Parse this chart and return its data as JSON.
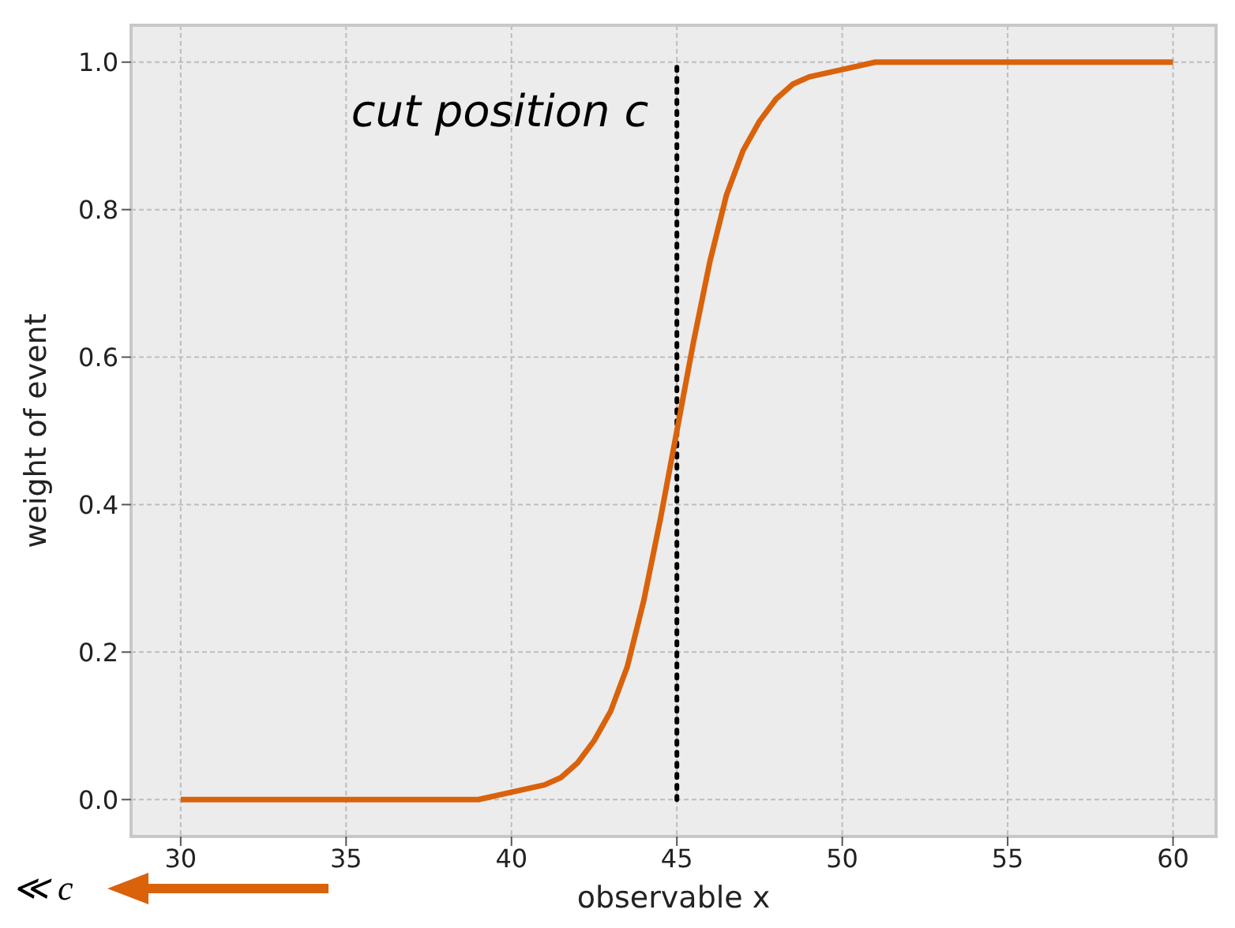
{
  "chart_data": {
    "type": "line",
    "xlabel": "observable x",
    "ylabel": "weight of event",
    "x": [
      30,
      35,
      38,
      39,
      40,
      41,
      41.5,
      42,
      42.5,
      43,
      43.5,
      44,
      44.5,
      45,
      45.5,
      46,
      46.5,
      47,
      47.5,
      48,
      48.5,
      49,
      50,
      51,
      55,
      60
    ],
    "series": [
      {
        "color": "#d9620b",
        "values": [
          0,
          0,
          0,
          0,
          0.01,
          0.02,
          0.03,
          0.05,
          0.08,
          0.12,
          0.18,
          0.27,
          0.38,
          0.5,
          0.62,
          0.73,
          0.82,
          0.88,
          0.92,
          0.95,
          0.97,
          0.98,
          0.99,
          1,
          1,
          1
        ]
      }
    ],
    "xlim": [
      28.5,
      61.3
    ],
    "xticks": [
      30,
      35,
      40,
      45,
      50,
      55,
      60
    ],
    "ylim": [
      -0.05,
      1.05
    ],
    "yticks": [
      {
        "value": 0,
        "label": "0.0"
      },
      {
        "value": 0.2,
        "label": "0.2"
      },
      {
        "value": 0.4,
        "label": "0.4"
      },
      {
        "value": 0.6,
        "label": "0.6"
      },
      {
        "value": 0.8,
        "label": "0.8"
      },
      {
        "value": 1,
        "label": "1.0"
      }
    ],
    "ref_lines": [
      {
        "axis": "x",
        "value": 45,
        "color": "#000000",
        "line_style": "dotted"
      }
    ],
    "annotations": [
      "cut position c",
      "≪ c"
    ],
    "grid": true,
    "legend": false,
    "marker": "none",
    "line_style": "solid"
  }
}
